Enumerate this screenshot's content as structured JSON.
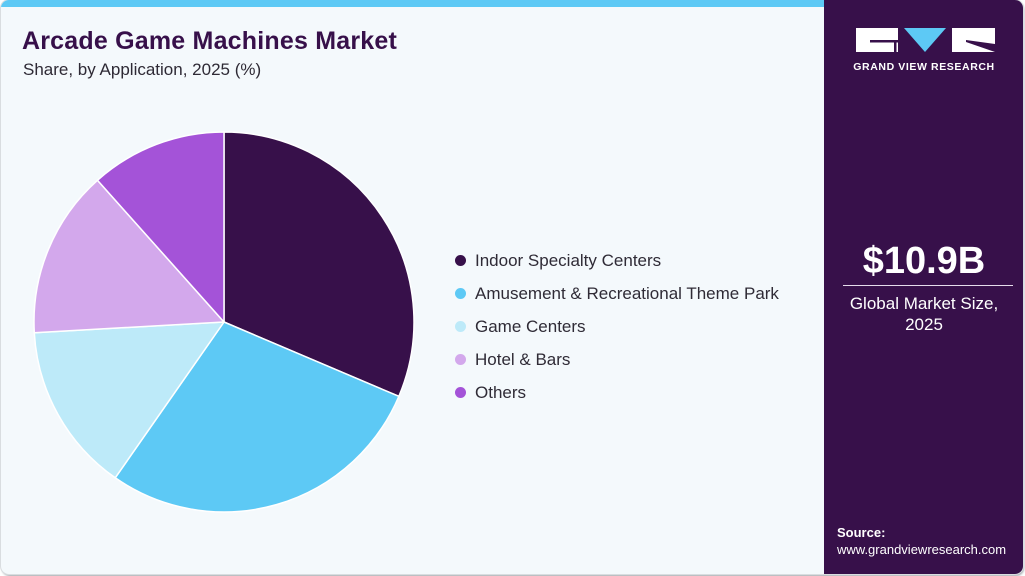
{
  "header": {
    "title": "Arcade Game Machines Market",
    "subtitle": "Share, by Application, 2025 (%)"
  },
  "sidebar": {
    "brand": "GRAND VIEW RESEARCH",
    "market_value": "$10.9B",
    "market_label_line1": "Global Market Size,",
    "market_label_line2": "2025",
    "source_label": "Source:",
    "source_url": "www.grandviewresearch.com"
  },
  "colors": {
    "accent_bar": "#5dc9f5",
    "sidebar_bg": "#37104a",
    "title": "#37104a",
    "background": "#f4f9fc"
  },
  "chart_data": {
    "type": "pie",
    "title": "Arcade Game Machines Market",
    "subtitle": "Share, by Application, 2025 (%)",
    "start_angle": "12 o'clock, clockwise",
    "legend_position": "right",
    "categories": [
      "Indoor Specialty Centers",
      "Amusement & Recreational Theme Park",
      "Game Centers",
      "Hotel & Bars",
      "Others"
    ],
    "values": [
      31.4,
      28.3,
      14.4,
      14.3,
      11.6
    ],
    "colors": [
      "#37104a",
      "#5dc9f5",
      "#bdeaf9",
      "#d3a8ec",
      "#a453d8"
    ],
    "units": "%"
  }
}
